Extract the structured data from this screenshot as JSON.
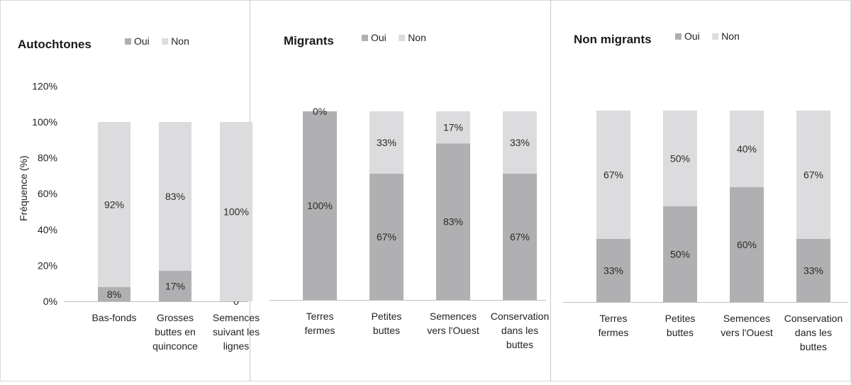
{
  "chart_data": [
    {
      "type": "bar",
      "stacked": true,
      "percent_stacked": true,
      "title": "Autochtones",
      "ylabel": "Fréquence (%)",
      "ylim": [
        0,
        120
      ],
      "yticks": [
        "0%",
        "20%",
        "40%",
        "60%",
        "80%",
        "100%",
        "120%"
      ],
      "grid": false,
      "legend_position": "top",
      "categories": [
        "Bas-fonds",
        "Grosses buttes en quinconce",
        "Semences suivant les lignes"
      ],
      "category_lines": [
        [
          "Bas-fonds"
        ],
        [
          "Grosses",
          "buttes en",
          "quinconce"
        ],
        [
          "Semences",
          "suivant les",
          "lignes"
        ]
      ],
      "series": [
        {
          "name": "Oui",
          "color": "#b0b0b2",
          "values": [
            8,
            17,
            0
          ],
          "labels": [
            "8%",
            "17%",
            "0"
          ]
        },
        {
          "name": "Non",
          "color": "#dcdcde",
          "values": [
            92,
            83,
            100
          ],
          "labels": [
            "92%",
            "83%",
            "100%"
          ]
        }
      ]
    },
    {
      "type": "bar",
      "stacked": true,
      "percent_stacked": true,
      "title": "Migrants",
      "grid": false,
      "legend_position": "top",
      "categories": [
        "Terres fermes",
        "Petites buttes",
        "Semences vers l'Ouest",
        "Conservation dans les buttes"
      ],
      "category_lines": [
        [
          "Terres",
          "fermes"
        ],
        [
          "Petites",
          "buttes"
        ],
        [
          "Semences",
          "vers l'Ouest"
        ],
        [
          "Conservation",
          "dans les",
          "buttes"
        ]
      ],
      "series": [
        {
          "name": "Oui",
          "color": "#b0b0b2",
          "values": [
            100,
            67,
            83,
            67
          ],
          "labels": [
            "100%",
            "67%",
            "83%",
            "67%"
          ]
        },
        {
          "name": "Non",
          "color": "#dcdcde",
          "values": [
            0,
            33,
            17,
            33
          ],
          "labels": [
            "0%",
            "33%",
            "17%",
            "33%"
          ]
        }
      ]
    },
    {
      "type": "bar",
      "stacked": true,
      "percent_stacked": true,
      "title": "Non migrants",
      "grid": false,
      "legend_position": "top",
      "categories": [
        "Terres fermes",
        "Petites buttes",
        "Semences vers l'Ouest",
        "Conservation dans les buttes"
      ],
      "category_lines": [
        [
          "Terres",
          "fermes"
        ],
        [
          "Petites",
          "buttes"
        ],
        [
          "Semences",
          "vers l'Ouest"
        ],
        [
          "Conservation",
          "dans les",
          "buttes"
        ]
      ],
      "series": [
        {
          "name": "Oui",
          "color": "#b0b0b2",
          "values": [
            33,
            50,
            60,
            33
          ],
          "labels": [
            "33%",
            "50%",
            "60%",
            "33%"
          ]
        },
        {
          "name": "Non",
          "color": "#dcdcde",
          "values": [
            67,
            50,
            40,
            67
          ],
          "labels": [
            "67%",
            "50%",
            "40%",
            "67%"
          ]
        }
      ]
    }
  ]
}
